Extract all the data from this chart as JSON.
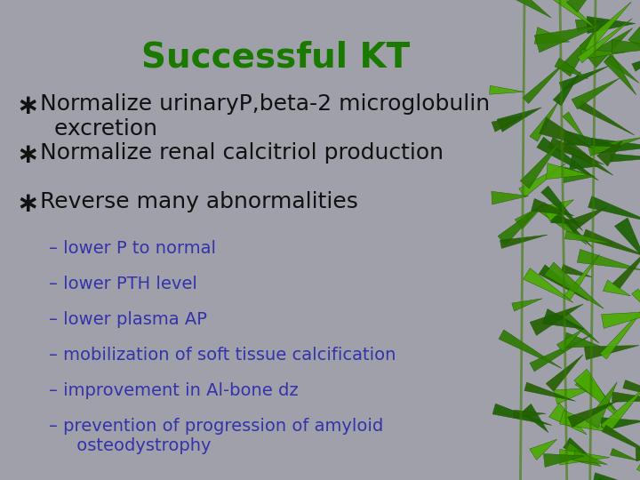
{
  "title": "Successful KT",
  "title_color": "#1a7a00",
  "title_fontsize": 28,
  "background_color": "#a0a0aa",
  "bullet_color": "#111111",
  "bullet_symbol": "∗",
  "bullet_fontsize": 18,
  "bullet_items": [
    "Normalize urinaryP,beta-2 microglobulin\n  excretion",
    "Normalize renal calcitriol production",
    "Reverse many abnormalities"
  ],
  "sub_items": [
    "– lower P to normal",
    "– lower PTH level",
    "– lower plasma AP",
    "– mobilization of soft tissue calcification",
    "– improvement in Al-bone dz",
    "– prevention of progression of amyloid\n     osteodystrophy"
  ],
  "sub_color": "#3333aa",
  "sub_fontsize": 14,
  "figsize": [
    7.2,
    5.4
  ],
  "dpi": 100
}
